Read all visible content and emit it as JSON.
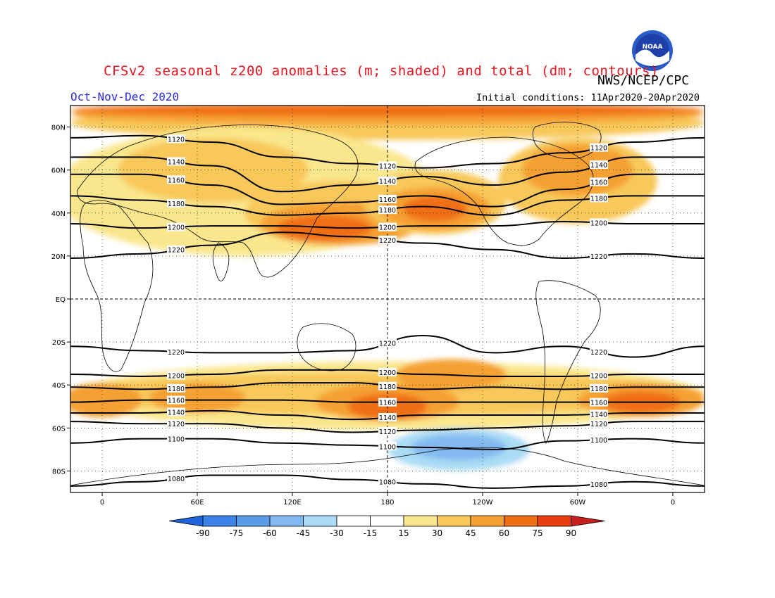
{
  "header": {
    "title": "CFSv2 seasonal z200 anomalies (m; shaded) and total (dm; contours)",
    "agency": "NWS/NCEP/CPC",
    "period": "Oct-Nov-Dec 2020",
    "initial_conditions": "Initial conditions: 11Apr2020-20Apr2020",
    "logo_text": "NOAA"
  },
  "map": {
    "projection": "equirectangular",
    "lon_range_east": [
      -20,
      380
    ],
    "lat_range": [
      -90,
      90
    ],
    "grid": "dotted",
    "lat_labels": [
      "80N",
      "60N",
      "40N",
      "20N",
      "EQ",
      "20S",
      "40S",
      "60S",
      "80S"
    ],
    "lat_values": [
      80,
      60,
      40,
      20,
      0,
      -20,
      -40,
      -60,
      -80
    ],
    "lon_labels": [
      "0",
      "60E",
      "120E",
      "180",
      "120W",
      "60W",
      "0"
    ],
    "lon_values": [
      0,
      60,
      120,
      180,
      240,
      300,
      360
    ]
  },
  "colorbar": {
    "labels": [
      "-90",
      "-75",
      "-60",
      "-45",
      "-30",
      "-15",
      "15",
      "30",
      "45",
      "60",
      "75",
      "90"
    ],
    "colors": [
      "#1e64dc",
      "#3c82e6",
      "#5a9be8",
      "#82b9f0",
      "#aadcf5",
      "#ffffff",
      "#fae68c",
      "#f8c85a",
      "#f5a032",
      "#f06e14",
      "#e63c0f",
      "#c81e1e"
    ]
  },
  "contours": [
    {
      "label": "1120",
      "lat": [
        75,
        76,
        73,
        66,
        63,
        61,
        63,
        68,
        73,
        75
      ]
    },
    {
      "label": "1140",
      "lat": [
        66,
        66,
        62,
        50,
        53,
        57,
        53,
        59,
        66,
        66
      ]
    },
    {
      "label": "1160",
      "lat": [
        58,
        58,
        53,
        44,
        45,
        48,
        43,
        51,
        58,
        58
      ]
    },
    {
      "label": "1180",
      "lat": [
        48,
        46,
        43,
        39,
        40,
        43,
        39,
        46,
        48,
        48
      ]
    },
    {
      "label": "1200",
      "lat": [
        35,
        33,
        34,
        34,
        33,
        34,
        34,
        36,
        35,
        35
      ]
    },
    {
      "label": "1220",
      "lat": [
        19,
        21,
        25,
        31,
        29,
        26,
        23,
        19,
        21,
        19
      ]
    },
    {
      "label": "1220",
      "lat": [
        -22,
        -24,
        -25,
        -25,
        -24,
        -17,
        -25,
        -22,
        -27,
        -22
      ]
    },
    {
      "label": "1200",
      "lat": [
        -35,
        -36,
        -35,
        -33,
        -33,
        -35,
        -36,
        -36,
        -35,
        -35
      ]
    },
    {
      "label": "1180",
      "lat": [
        -41,
        -42,
        -41,
        -39,
        -39,
        -42,
        -41,
        -42,
        -41,
        -41
      ]
    },
    {
      "label": "1160",
      "lat": [
        -48,
        -47,
        -47,
        -47,
        -48,
        -48,
        -48,
        -48,
        -48,
        -48
      ]
    },
    {
      "label": "1140",
      "lat": [
        -53,
        -53,
        -52,
        -54,
        -56,
        -54,
        -54,
        -54,
        -53,
        -53
      ]
    },
    {
      "label": "1120",
      "lat": [
        -57,
        -58,
        -58,
        -60,
        -62,
        -61,
        -60,
        -59,
        -57,
        -57
      ]
    },
    {
      "label": "1100",
      "lat": [
        -67,
        -65,
        -65,
        -67,
        -68,
        -69,
        -70,
        -66,
        -65,
        -67
      ]
    },
    {
      "label": "1080",
      "lat": [
        -87,
        -85,
        -82,
        -82,
        -84,
        -86,
        -88,
        -87,
        -85,
        -87
      ]
    }
  ],
  "anomaly_blobs": [
    {
      "value": 30,
      "lon": 180,
      "lat": 82,
      "rx": 200,
      "ry": 8
    },
    {
      "value": 45,
      "lon": 180,
      "lat": 86,
      "rx": 200,
      "ry": 5
    },
    {
      "value": 60,
      "lon": 180,
      "lat": 88,
      "rx": 200,
      "ry": 3
    },
    {
      "value": 15,
      "lon": 90,
      "lat": 50,
      "rx": 120,
      "ry": 30
    },
    {
      "value": 30,
      "lon": 70,
      "lat": 60,
      "rx": 60,
      "ry": 15
    },
    {
      "value": 30,
      "lon": 150,
      "lat": 40,
      "rx": 60,
      "ry": 15
    },
    {
      "value": 45,
      "lon": 150,
      "lat": 35,
      "rx": 50,
      "ry": 10
    },
    {
      "value": 60,
      "lon": 140,
      "lat": 33,
      "rx": 30,
      "ry": 6
    },
    {
      "value": 30,
      "lon": 210,
      "lat": 45,
      "rx": 45,
      "ry": 15
    },
    {
      "value": 45,
      "lon": 210,
      "lat": 42,
      "rx": 35,
      "ry": 10
    },
    {
      "value": 60,
      "lon": 210,
      "lat": 42,
      "rx": 20,
      "ry": 6
    },
    {
      "value": 30,
      "lon": 300,
      "lat": 55,
      "rx": 50,
      "ry": 20
    },
    {
      "value": 45,
      "lon": 300,
      "lat": 60,
      "rx": 35,
      "ry": 12
    },
    {
      "value": 15,
      "lon": 180,
      "lat": -45,
      "rx": 200,
      "ry": 16
    },
    {
      "value": 30,
      "lon": 180,
      "lat": -44,
      "rx": 200,
      "ry": 10
    },
    {
      "value": 45,
      "lon": 180,
      "lat": -48,
      "rx": 45,
      "ry": 9
    },
    {
      "value": 60,
      "lon": 180,
      "lat": -50,
      "rx": 25,
      "ry": 6
    },
    {
      "value": 45,
      "lon": 60,
      "lat": -46,
      "rx": 30,
      "ry": 7
    },
    {
      "value": 45,
      "lon": 220,
      "lat": -35,
      "rx": 35,
      "ry": 7
    },
    {
      "value": 45,
      "lon": 340,
      "lat": -47,
      "rx": 40,
      "ry": 8
    },
    {
      "value": 60,
      "lon": 340,
      "lat": -48,
      "rx": 25,
      "ry": 5
    },
    {
      "value": 45,
      "lon": 0,
      "lat": -47,
      "rx": 25,
      "ry": 8
    },
    {
      "value": -15,
      "lon": 180,
      "lat": -73,
      "rx": 200,
      "ry": 10
    },
    {
      "value": -30,
      "lon": 225,
      "lat": -70,
      "rx": 45,
      "ry": 10
    },
    {
      "value": -45,
      "lon": 225,
      "lat": -69,
      "rx": 30,
      "ry": 6
    },
    {
      "value": -15,
      "lon": 225,
      "lat": -12,
      "rx": 12,
      "ry": 4
    }
  ]
}
